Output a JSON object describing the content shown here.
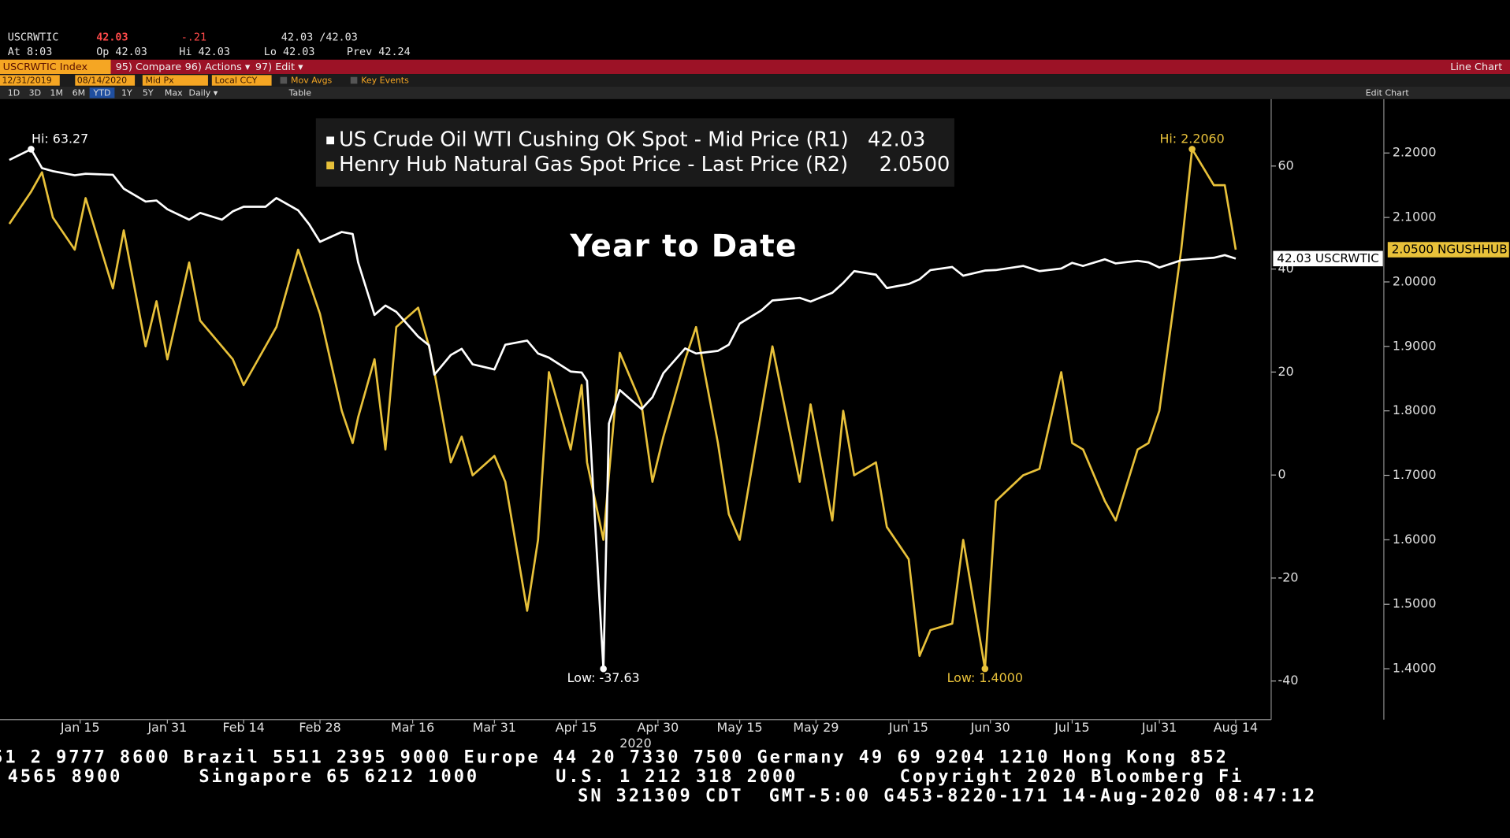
{
  "header": {
    "ticker": "USCRWTIC",
    "last": "42.03",
    "change": "-.21",
    "bidask": "42.03 /42.03",
    "at": "At 8:03",
    "open": "Op 42.03",
    "high": "Hi 42.03",
    "low": "Lo 42.03",
    "prev": "Prev 42.24"
  },
  "toolbar": {
    "security": "USCRWTIC Index",
    "compare": "95) Compare",
    "actions": "96) Actions ▾",
    "edit": "97) Edit ▾",
    "chart_kind": "Line Chart",
    "start_date": "12/31/2019",
    "end_date": "08/14/2020",
    "field": "Mid Px",
    "currency": "Local CCY",
    "mov_avgs": "Mov Avgs",
    "key_events": "Key Events",
    "ranges": [
      "1D",
      "3D",
      "1M",
      "6M",
      "YTD",
      "1Y",
      "5Y",
      "Max"
    ],
    "period": "Daily ▾",
    "table": "Table",
    "edit_chart": "Edit Chart"
  },
  "chart_data": {
    "type": "line",
    "title": "Year to Date",
    "x_label": "2020",
    "x": [
      "Jan 2",
      "Jan 6",
      "Jan 8",
      "Jan 10",
      "Jan 14",
      "Jan 16",
      "Jan 21",
      "Jan 23",
      "Jan 27",
      "Jan 29",
      "Jan 31",
      "Feb 4",
      "Feb 6",
      "Feb 10",
      "Feb 12",
      "Feb 14",
      "Feb 18",
      "Feb 20",
      "Feb 24",
      "Feb 26",
      "Feb 28",
      "Mar 3",
      "Mar 5",
      "Mar 6",
      "Mar 9",
      "Mar 11",
      "Mar 13",
      "Mar 17",
      "Mar 19",
      "Mar 20",
      "Mar 23",
      "Mar 25",
      "Mar 27",
      "Mar 31",
      "Apr 2",
      "Apr 6",
      "Apr 8",
      "Apr 10",
      "Apr 14",
      "Apr 16",
      "Apr 17",
      "Apr 20",
      "Apr 21",
      "Apr 23",
      "Apr 27",
      "Apr 29",
      "May 1",
      "May 5",
      "May 7",
      "May 11",
      "May 13",
      "May 15",
      "May 19",
      "May 21",
      "May 26",
      "May 28",
      "Jun 1",
      "Jun 3",
      "Jun 5",
      "Jun 9",
      "Jun 11",
      "Jun 15",
      "Jun 17",
      "Jun 19",
      "Jun 23",
      "Jun 25",
      "Jun 29",
      "Jul 1",
      "Jul 6",
      "Jul 9",
      "Jul 13",
      "Jul 15",
      "Jul 17",
      "Jul 21",
      "Jul 23",
      "Jul 27",
      "Jul 29",
      "Jul 31",
      "Aug 4",
      "Aug 6",
      "Aug 10",
      "Aug 12",
      "Aug 14"
    ],
    "xticks": [
      "Jan 15",
      "Jan 31",
      "Feb 14",
      "Feb 28",
      "Mar 16",
      "Mar 31",
      "Apr 15",
      "Apr 30",
      "May 15",
      "May 29",
      "Jun 15",
      "Jun 30",
      "Jul 15",
      "Jul 31",
      "Aug 14"
    ],
    "series": [
      {
        "name": "US Crude Oil WTI Cushing OK Spot - Mid Price (R1)",
        "color": "#ffffff",
        "axis": "y",
        "hi_label": "Hi: 63.27",
        "low_label": "Low: -37.63",
        "values": [
          61.2,
          63.27,
          59.6,
          59.0,
          58.2,
          58.5,
          58.3,
          55.6,
          53.1,
          53.3,
          51.6,
          49.6,
          50.9,
          49.6,
          51.2,
          52.1,
          52.1,
          53.8,
          51.4,
          48.7,
          45.3,
          47.2,
          46.8,
          41.3,
          31.1,
          32.9,
          31.7,
          26.9,
          25.2,
          19.5,
          23.3,
          24.5,
          21.5,
          20.5,
          25.3,
          26.1,
          23.6,
          22.8,
          20.1,
          19.9,
          18.3,
          -37.63,
          10.0,
          16.5,
          12.8,
          15.1,
          19.8,
          24.6,
          23.6,
          24.1,
          25.3,
          29.4,
          32.0,
          33.9,
          34.4,
          33.7,
          35.4,
          37.3,
          39.6,
          38.9,
          36.3,
          37.1,
          38.0,
          39.8,
          40.4,
          38.7,
          39.7,
          39.8,
          40.6,
          39.6,
          40.1,
          41.2,
          40.6,
          41.9,
          41.1,
          41.6,
          41.3,
          40.3,
          41.7,
          41.9,
          42.2,
          42.7,
          42.03
        ]
      },
      {
        "name": "Henry Hub Natural Gas Spot Price - Last Price (R2)",
        "color": "#e8c13a",
        "axis": "y2",
        "hi_label": "Hi: 2.2060",
        "low_label": "Low: 1.4000",
        "values": [
          2.09,
          2.14,
          2.17,
          2.1,
          2.05,
          2.13,
          1.99,
          2.08,
          1.9,
          1.97,
          1.88,
          2.03,
          1.94,
          1.9,
          1.88,
          1.84,
          1.9,
          1.93,
          2.05,
          2.0,
          1.95,
          1.8,
          1.75,
          1.79,
          1.88,
          1.74,
          1.93,
          1.96,
          1.9,
          1.86,
          1.72,
          1.76,
          1.7,
          1.73,
          1.69,
          1.49,
          1.6,
          1.86,
          1.74,
          1.84,
          1.72,
          1.6,
          1.7,
          1.89,
          1.81,
          1.69,
          1.76,
          1.88,
          1.93,
          1.75,
          1.64,
          1.6,
          1.8,
          1.9,
          1.69,
          1.81,
          1.63,
          1.8,
          1.7,
          1.72,
          1.62,
          1.57,
          1.42,
          1.46,
          1.47,
          1.6,
          1.4,
          1.66,
          1.7,
          1.71,
          1.86,
          1.75,
          1.74,
          1.66,
          1.63,
          1.74,
          1.75,
          1.8,
          2.05,
          2.206,
          2.15,
          2.15,
          2.05
        ]
      }
    ],
    "legend_values": [
      "42.03",
      "2.0500"
    ],
    "last_tags": [
      "42.03 USCRWTIC",
      "2.0500 NGUSHHUB"
    ],
    "ylim": [
      -47.5,
      73
    ],
    "yticks": [
      60,
      40,
      20,
      0,
      -20,
      -40
    ],
    "y2lim": [
      1.321,
      2.2836
    ],
    "y2ticks": [
      {
        "value": 2.2,
        "label": "2.2000"
      },
      {
        "value": 2.1,
        "label": "2.1000"
      },
      {
        "value": 2.0,
        "label": "2.0000"
      },
      {
        "value": 1.9,
        "label": "1.9000"
      },
      {
        "value": 1.8,
        "label": "1.8000"
      },
      {
        "value": 1.7,
        "label": "1.7000"
      },
      {
        "value": 1.6,
        "label": "1.6000"
      },
      {
        "value": 1.5,
        "label": "1.5000"
      },
      {
        "value": 1.4,
        "label": "1.4000"
      }
    ],
    "grid": false
  },
  "footer": [
    "51 2 9777 8600 Brazil 5511 2395 9000 Europe 44 20 7330 7500 Germany 49 69 9204 1210 Hong Kong 852",
    "4565 8900      Singapore 65 6212 1000      U.S. 1 212 318 2000        Copyright 2020 Bloomberg Fi",
    "SN 321309 CDT  GMT-5:00 G453-8220-171 14-Aug-2020 08:47:12"
  ]
}
